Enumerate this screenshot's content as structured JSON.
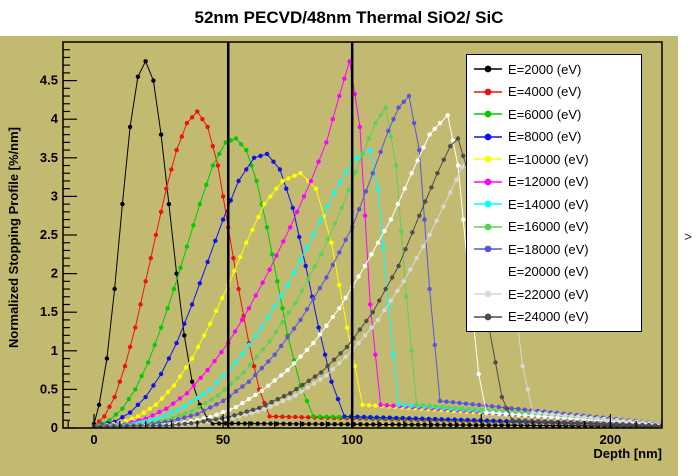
{
  "window": {
    "scroll_arrow": ">"
  },
  "chart_data": {
    "type": "line",
    "title": "52nm PECVD/48nm Thermal SiO2/ SiC",
    "xlabel": "Depth [nm]",
    "ylabel": "Normalized Stopping Profile [%/nm]",
    "xlim": [
      -12,
      220
    ],
    "ylim": [
      0,
      5
    ],
    "x_ticks": [
      0,
      50,
      100,
      150,
      200
    ],
    "x_tick_labels": [
      "0",
      "50",
      "100",
      "150",
      "200"
    ],
    "y_ticks": [
      0,
      0.5,
      1,
      1.5,
      2,
      2.5,
      3,
      3.5,
      4,
      4.5
    ],
    "y_tick_labels": [
      "0",
      "0.5",
      "1",
      "1.5",
      "2",
      "2.5",
      "3",
      "3.5",
      "4",
      "4.5"
    ],
    "grid": false,
    "background_color": "#c2ba71",
    "frame_color": "#000000",
    "boundary_lines_x": [
      52,
      100
    ],
    "legend_position": "top-right",
    "series": [
      {
        "name": "E=2000 (eV)",
        "color": "#000000",
        "x": [
          0,
          2,
          5,
          8,
          11,
          14,
          17,
          20,
          23,
          26,
          29,
          32,
          35,
          38,
          41,
          44,
          46,
          230
        ],
        "y": [
          0.05,
          0.3,
          0.9,
          1.8,
          2.9,
          3.9,
          4.55,
          4.75,
          4.5,
          3.8,
          2.9,
          2.0,
          1.2,
          0.6,
          0.3,
          0.12,
          0.06,
          0.02
        ]
      },
      {
        "name": "E=4000 (eV)",
        "color": "#ee1111",
        "x": [
          0,
          4,
          8,
          12,
          16,
          20,
          24,
          28,
          32,
          36,
          40,
          44,
          48,
          52,
          56,
          60,
          64,
          68,
          230
        ],
        "y": [
          0.02,
          0.15,
          0.4,
          0.8,
          1.3,
          1.9,
          2.5,
          3.1,
          3.6,
          3.95,
          4.1,
          3.9,
          3.4,
          2.6,
          1.8,
          1.1,
          0.5,
          0.15,
          0.02
        ]
      },
      {
        "name": "E=6000 (eV)",
        "color": "#00cc00",
        "x": [
          0,
          6,
          11,
          16,
          21,
          26,
          31,
          36,
          41,
          46,
          51,
          55,
          59,
          63,
          67,
          71,
          75,
          80,
          85,
          230
        ],
        "y": [
          0.02,
          0.1,
          0.25,
          0.5,
          0.85,
          1.3,
          1.8,
          2.35,
          2.9,
          3.4,
          3.7,
          3.75,
          3.6,
          3.2,
          2.6,
          1.9,
          1.2,
          0.55,
          0.15,
          0.02
        ]
      },
      {
        "name": "E=8000 (eV)",
        "color": "#1111ee",
        "x": [
          0,
          8,
          14,
          20,
          26,
          32,
          38,
          44,
          50,
          56,
          62,
          67,
          72,
          77,
          82,
          87,
          92,
          97,
          230
        ],
        "y": [
          0.02,
          0.08,
          0.2,
          0.4,
          0.7,
          1.1,
          1.6,
          2.15,
          2.7,
          3.2,
          3.5,
          3.55,
          3.35,
          2.85,
          2.1,
          1.3,
          0.6,
          0.15,
          0.02
        ]
      },
      {
        "name": "E=10000 (eV)",
        "color": "#ffff00",
        "x": [
          0,
          10,
          17,
          24,
          31,
          38,
          45,
          52,
          59,
          66,
          73,
          80,
          86,
          92,
          98,
          104,
          230
        ],
        "y": [
          0.02,
          0.06,
          0.15,
          0.3,
          0.55,
          0.9,
          1.35,
          1.85,
          2.4,
          2.9,
          3.2,
          3.3,
          3.1,
          2.4,
          1.3,
          0.3,
          0.02
        ]
      },
      {
        "name": "E=12000 (eV)",
        "color": "#ff00ff",
        "x": [
          0,
          12,
          20,
          28,
          36,
          44,
          52,
          60,
          68,
          76,
          84,
          90,
          95,
          99,
          103,
          107,
          111,
          230
        ],
        "y": [
          0.02,
          0.05,
          0.12,
          0.25,
          0.45,
          0.75,
          1.1,
          1.55,
          2.05,
          2.6,
          3.2,
          3.7,
          4.3,
          4.75,
          3.9,
          1.6,
          0.3,
          0.02
        ]
      },
      {
        "name": "E=14000 (eV)",
        "color": "#00ffff",
        "x": [
          0,
          15,
          25,
          35,
          45,
          55,
          65,
          75,
          85,
          93,
          100,
          104,
          107,
          110,
          114,
          118,
          230
        ],
        "y": [
          0.02,
          0.05,
          0.12,
          0.28,
          0.5,
          0.85,
          1.3,
          1.85,
          2.5,
          3.05,
          3.45,
          3.55,
          3.6,
          3.1,
          1.6,
          0.3,
          0.02
        ]
      },
      {
        "name": "E=16000 (eV)",
        "color": "#59d354",
        "x": [
          0,
          18,
          28,
          38,
          48,
          58,
          68,
          78,
          88,
          96,
          104,
          109,
          113,
          117,
          121,
          125,
          230
        ],
        "y": [
          0.02,
          0.04,
          0.1,
          0.22,
          0.42,
          0.72,
          1.12,
          1.62,
          2.25,
          2.85,
          3.55,
          3.95,
          4.15,
          3.4,
          1.7,
          0.3,
          0.02
        ]
      },
      {
        "name": "E=18000 (eV)",
        "color": "#5954d8",
        "x": [
          0,
          20,
          30,
          40,
          50,
          60,
          70,
          80,
          90,
          100,
          108,
          114,
          118,
          122,
          126,
          130,
          134,
          230
        ],
        "y": [
          0.02,
          0.04,
          0.09,
          0.18,
          0.35,
          0.6,
          0.95,
          1.4,
          1.95,
          2.6,
          3.3,
          3.85,
          4.15,
          4.3,
          3.6,
          1.8,
          0.35,
          0.02
        ]
      },
      {
        "name": "E=20000 (eV)",
        "color": "#ffffff",
        "x": [
          0,
          25,
          35,
          45,
          55,
          65,
          75,
          85,
          95,
          105,
          115,
          123,
          130,
          134,
          137,
          141,
          145,
          149,
          152,
          230
        ],
        "y": [
          0.02,
          0.03,
          0.07,
          0.14,
          0.27,
          0.48,
          0.75,
          1.1,
          1.55,
          2.1,
          2.7,
          3.3,
          3.8,
          3.95,
          4.05,
          3.4,
          2.0,
          0.7,
          0.2,
          0.02
        ]
      },
      {
        "name": "E=22000 (eV)",
        "color": "#d8d8d8",
        "x": [
          0,
          30,
          42,
          54,
          66,
          78,
          90,
          100,
          110,
          120,
          130,
          138,
          145,
          150,
          153,
          157,
          161,
          166,
          170,
          230
        ],
        "y": [
          0.02,
          0.03,
          0.07,
          0.13,
          0.24,
          0.42,
          0.68,
          1.0,
          1.4,
          1.9,
          2.5,
          3.05,
          3.55,
          3.8,
          3.85,
          3.3,
          2.2,
          0.8,
          0.2,
          0.02
        ]
      },
      {
        "name": "E=24000 (eV)",
        "color": "#4d4d4d",
        "x": [
          0,
          28,
          40,
          52,
          64,
          76,
          88,
          98,
          108,
          118,
          126,
          133,
          138,
          141,
          145,
          149,
          153,
          158,
          162,
          230
        ],
        "y": [
          0.02,
          0.03,
          0.07,
          0.14,
          0.26,
          0.45,
          0.72,
          1.05,
          1.5,
          2.1,
          2.75,
          3.3,
          3.65,
          3.75,
          3.3,
          2.4,
          1.3,
          0.4,
          0.1,
          0.02
        ]
      }
    ]
  }
}
